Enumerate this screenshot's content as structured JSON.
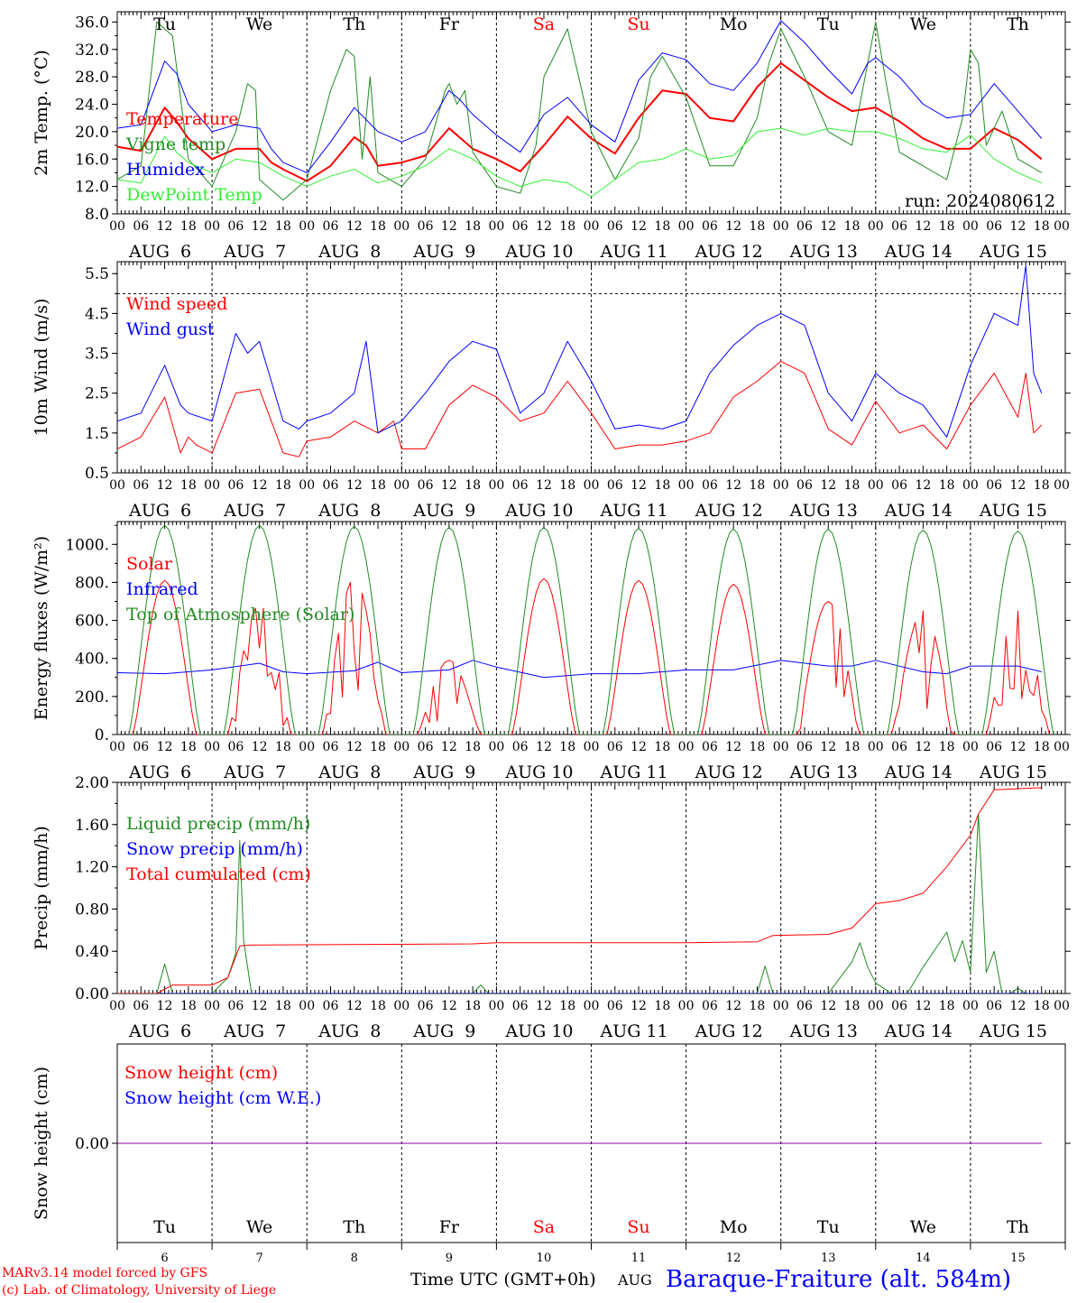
{
  "footer": {
    "credit_line1": "MARv3.14 model forced by GFS",
    "credit_line2": "(c) Lab. of Climatology, University of Liege",
    "xlabel": "Time UTC (GMT+0h)",
    "month": "AUG",
    "station": "Baraque-Fraiture (alt. 584m)"
  },
  "colors": {
    "red": "#ff0000",
    "green": "#228b22",
    "blue": "#0000ff",
    "lightgreen": "#33ee33",
    "purple": "#8800aa"
  },
  "days": [
    {
      "weekday": "Tu",
      "date": "AUG  6",
      "daynum": "6",
      "weekend": false
    },
    {
      "weekday": "We",
      "date": "AUG  7",
      "daynum": "7",
      "weekend": false
    },
    {
      "weekday": "Th",
      "date": "AUG  8",
      "daynum": "8",
      "weekend": false
    },
    {
      "weekday": "Fr",
      "date": "AUG  9",
      "daynum": "9",
      "weekend": false
    },
    {
      "weekday": "Sa",
      "date": "AUG 10",
      "daynum": "10",
      "weekend": true
    },
    {
      "weekday": "Su",
      "date": "AUG 11",
      "daynum": "11",
      "weekend": true
    },
    {
      "weekday": "Mo",
      "date": "AUG 12",
      "daynum": "12",
      "weekend": false
    },
    {
      "weekday": "Tu",
      "date": "AUG 13",
      "daynum": "13",
      "weekend": false
    },
    {
      "weekday": "We",
      "date": "AUG 14",
      "daynum": "14",
      "weekend": false
    },
    {
      "weekday": "Th",
      "date": "AUG 15",
      "daynum": "15",
      "weekend": false
    }
  ],
  "hour_labels": [
    "00",
    "06",
    "12",
    "18"
  ],
  "final_hour_label": "00",
  "chart_data": [
    {
      "type": "line",
      "id": "temp",
      "ylabel": "2m Temp. (°C)",
      "ylim": [
        8,
        37.5
      ],
      "yticks": [
        "8.0",
        "12.0",
        "16.0",
        "20.0",
        "24.0",
        "28.0",
        "32.0",
        "36.0"
      ],
      "annotation": "run: 2024080612",
      "series": [
        {
          "name": "Temperature",
          "color": "red",
          "width": 2,
          "x": [
            0,
            6,
            12,
            15,
            18,
            24,
            30,
            36,
            39,
            42,
            48,
            54,
            60,
            63,
            66,
            72,
            78,
            84,
            87,
            90,
            96,
            102,
            108,
            114,
            120,
            126,
            132,
            138,
            144,
            150,
            156,
            162,
            168,
            174,
            180,
            186,
            192,
            198,
            204,
            210,
            216,
            222,
            228,
            234
          ],
          "y": [
            17.8,
            17.2,
            23.5,
            21.5,
            19.0,
            16.0,
            17.5,
            17.5,
            15.5,
            14.5,
            12.8,
            15.0,
            19.2,
            18.0,
            15.0,
            15.5,
            16.5,
            20.5,
            19.0,
            17.5,
            16.0,
            14.2,
            18.0,
            22.2,
            19.0,
            16.8,
            22.0,
            26.0,
            25.5,
            22.0,
            21.5,
            26.5,
            30.0,
            27.5,
            25.0,
            23.0,
            23.5,
            21.5,
            19.0,
            17.5,
            17.5,
            20.5,
            18.8,
            16.0
          ]
        },
        {
          "name": "Vigne temp",
          "color": "green",
          "width": 1,
          "x": [
            0,
            6,
            10,
            14,
            18,
            24,
            30,
            33,
            35,
            36,
            42,
            48,
            54,
            58,
            60,
            62,
            64,
            66,
            72,
            78,
            83,
            84,
            86,
            88,
            90,
            96,
            102,
            106,
            108,
            114,
            120,
            126,
            132,
            135,
            138,
            144,
            150,
            156,
            162,
            165,
            168,
            174,
            180,
            186,
            190,
            192,
            195,
            198,
            204,
            210,
            214,
            216,
            218,
            220,
            224,
            228,
            234
          ],
          "y": [
            13,
            15,
            36,
            34,
            16,
            12,
            20,
            27,
            26,
            13,
            10,
            13,
            26,
            32,
            31,
            16,
            28,
            14,
            12,
            16,
            26,
            27,
            24,
            26,
            17,
            12,
            11,
            18,
            28,
            35,
            20,
            13,
            19,
            28,
            31,
            25,
            15,
            15,
            22,
            30,
            35,
            28,
            20,
            18,
            30,
            36,
            26,
            17,
            15,
            13,
            22,
            32,
            30,
            18,
            23,
            16,
            14
          ]
        },
        {
          "name": "Humidex",
          "color": "blue",
          "width": 1,
          "x": [
            0,
            6,
            12,
            15,
            18,
            24,
            30,
            36,
            39,
            42,
            48,
            54,
            60,
            66,
            72,
            78,
            84,
            87,
            90,
            96,
            102,
            108,
            114,
            120,
            126,
            132,
            138,
            144,
            150,
            156,
            162,
            168,
            174,
            180,
            186,
            190,
            192,
            198,
            204,
            210,
            216,
            222,
            228,
            234
          ],
          "y": [
            20.5,
            21.0,
            30.3,
            28.5,
            24.0,
            20.0,
            21.0,
            20.5,
            17.5,
            15.5,
            14.0,
            18.5,
            23.5,
            20.0,
            18.5,
            20.0,
            26.0,
            24.5,
            22.5,
            19.5,
            17.0,
            22.5,
            25.0,
            21.0,
            18.5,
            27.5,
            31.5,
            30.5,
            27.0,
            26.0,
            30.0,
            36.2,
            33.0,
            29.0,
            25.5,
            30.0,
            30.8,
            28.0,
            24.0,
            22.0,
            22.5,
            27.0,
            23.0,
            19.0
          ]
        },
        {
          "name": "DewPoint Temp",
          "color": "lightgreen",
          "width": 1,
          "x": [
            0,
            6,
            12,
            15,
            18,
            24,
            30,
            36,
            39,
            42,
            48,
            54,
            60,
            66,
            72,
            78,
            84,
            87,
            90,
            96,
            102,
            108,
            114,
            120,
            126,
            132,
            138,
            144,
            150,
            156,
            162,
            168,
            174,
            180,
            186,
            192,
            198,
            204,
            210,
            216,
            222,
            228,
            234
          ],
          "y": [
            13.0,
            12.5,
            19.3,
            17.0,
            15.5,
            14.0,
            16.0,
            15.5,
            14.5,
            13.5,
            12.0,
            13.5,
            14.5,
            12.5,
            13.5,
            15.0,
            17.5,
            16.8,
            16.0,
            13.5,
            12.0,
            13.0,
            12.5,
            10.5,
            13.0,
            15.5,
            16.0,
            17.5,
            16.0,
            16.5,
            20.0,
            20.5,
            19.5,
            20.5,
            20.0,
            20.0,
            19.0,
            17.5,
            17.0,
            19.5,
            16.0,
            14.0,
            12.5
          ]
        }
      ]
    },
    {
      "type": "line",
      "id": "wind",
      "ylabel": "10m Wind (m/s)",
      "ylim": [
        0.5,
        5.8
      ],
      "yticks": [
        "0.5",
        "1.5",
        "2.5",
        "3.5",
        "4.5",
        "5.5"
      ],
      "reference_line": 5.0,
      "series": [
        {
          "name": "Wind speed",
          "color": "red",
          "width": 1,
          "x": [
            0,
            6,
            12,
            16,
            18,
            20,
            24,
            30,
            36,
            42,
            46,
            48,
            54,
            60,
            66,
            70,
            72,
            78,
            84,
            90,
            96,
            102,
            108,
            114,
            120,
            126,
            132,
            138,
            144,
            150,
            156,
            162,
            168,
            174,
            180,
            186,
            192,
            198,
            204,
            210,
            216,
            222,
            228,
            230,
            232,
            234
          ],
          "y": [
            1.1,
            1.4,
            2.4,
            1.0,
            1.4,
            1.2,
            1.0,
            2.5,
            2.6,
            1.0,
            0.9,
            1.3,
            1.4,
            1.8,
            1.5,
            1.8,
            1.1,
            1.1,
            2.2,
            2.7,
            2.4,
            1.8,
            2.0,
            2.8,
            2.0,
            1.1,
            1.2,
            1.2,
            1.3,
            1.5,
            2.4,
            2.8,
            3.3,
            3.0,
            1.6,
            1.2,
            2.3,
            1.5,
            1.7,
            1.1,
            2.2,
            3.0,
            1.9,
            3.0,
            1.5,
            1.7
          ]
        },
        {
          "name": "Wind gust",
          "color": "blue",
          "width": 1,
          "x": [
            0,
            6,
            12,
            16,
            18,
            24,
            30,
            33,
            36,
            42,
            46,
            48,
            54,
            60,
            63,
            66,
            72,
            78,
            84,
            90,
            96,
            102,
            108,
            114,
            120,
            126,
            132,
            138,
            144,
            150,
            156,
            162,
            168,
            174,
            180,
            186,
            192,
            198,
            204,
            210,
            216,
            222,
            228,
            230,
            232,
            234
          ],
          "y": [
            1.8,
            2.0,
            3.2,
            2.2,
            2.0,
            1.8,
            4.0,
            3.5,
            3.8,
            1.8,
            1.6,
            1.8,
            2.0,
            2.5,
            3.8,
            1.5,
            1.8,
            2.5,
            3.3,
            3.8,
            3.6,
            2.0,
            2.5,
            3.8,
            2.8,
            1.6,
            1.7,
            1.6,
            1.8,
            3.0,
            3.7,
            4.2,
            4.5,
            4.2,
            2.5,
            1.8,
            3.0,
            2.5,
            2.2,
            1.4,
            3.2,
            4.5,
            4.2,
            5.7,
            3.0,
            2.5
          ]
        }
      ]
    },
    {
      "type": "line",
      "id": "energy",
      "ylabel": "Energy fluxes (W/m²)",
      "ylim": [
        0,
        1120
      ],
      "yticks": [
        "0.",
        "200.",
        "400.",
        "600.",
        "800.",
        "1000."
      ],
      "series": [
        {
          "name": "Solar",
          "color": "red",
          "width": 1,
          "peaks": [
            810,
            680,
            820,
            390,
            820,
            810,
            790,
            700,
            650,
            650
          ]
        },
        {
          "name": "Infrared",
          "color": "blue",
          "width": 1,
          "x": [
            0,
            12,
            24,
            36,
            42,
            48,
            60,
            66,
            72,
            84,
            90,
            96,
            108,
            120,
            132,
            144,
            156,
            168,
            180,
            186,
            192,
            204,
            210,
            216,
            228,
            234
          ],
          "y": [
            325,
            320,
            340,
            375,
            330,
            320,
            335,
            380,
            325,
            340,
            390,
            355,
            300,
            320,
            320,
            340,
            340,
            390,
            360,
            360,
            390,
            330,
            320,
            360,
            360,
            330
          ]
        },
        {
          "name": "Top of Atmosphere (Solar)",
          "color": "green",
          "width": 1,
          "peaks": [
            1100,
            1100,
            1095,
            1090,
            1090,
            1085,
            1080,
            1080,
            1075,
            1070
          ]
        }
      ]
    },
    {
      "type": "line",
      "id": "precip",
      "ylabel": "Precip (mm/h)",
      "ylim": [
        0,
        2.0
      ],
      "yticks": [
        "0.00",
        "0.40",
        "0.80",
        "1.20",
        "1.60",
        "2.00"
      ],
      "series": [
        {
          "name": "Liquid precip (mm/h)",
          "color": "green",
          "width": 1,
          "x": [
            0,
            10,
            12,
            14,
            24,
            28,
            30,
            31,
            32,
            34,
            36,
            90,
            92,
            94,
            162,
            164,
            166,
            168,
            180,
            186,
            188,
            190,
            192,
            196,
            200,
            204,
            210,
            212,
            214,
            216,
            218,
            220,
            222,
            224,
            226,
            228,
            230,
            234
          ],
          "y": [
            0,
            0,
            0.28,
            0,
            0,
            0.15,
            0.38,
            1.45,
            0.5,
            0,
            0,
            0,
            0.08,
            0,
            0,
            0.26,
            0,
            0,
            0,
            0.3,
            0.48,
            0.25,
            0.1,
            0,
            0,
            0.25,
            0.58,
            0.3,
            0.5,
            0.2,
            1.7,
            0.2,
            0.4,
            0,
            0,
            0.05,
            0,
            0
          ]
        },
        {
          "name": "Snow precip (mm/h)",
          "color": "blue",
          "width": 1,
          "x": [
            0,
            234
          ],
          "y": [
            0,
            0
          ]
        },
        {
          "name": "Total cumulated (cm)",
          "color": "red",
          "width": 1,
          "x": [
            0,
            10,
            14,
            24,
            28,
            31,
            34,
            36,
            90,
            96,
            144,
            162,
            166,
            180,
            186,
            192,
            198,
            204,
            210,
            216,
            218,
            222,
            234
          ],
          "y": [
            0,
            0,
            0.08,
            0.08,
            0.15,
            0.45,
            0.46,
            0.46,
            0.47,
            0.48,
            0.48,
            0.49,
            0.55,
            0.56,
            0.62,
            0.85,
            0.88,
            0.95,
            1.2,
            1.5,
            1.7,
            1.93,
            1.95
          ]
        }
      ]
    },
    {
      "type": "line",
      "id": "snow",
      "ylabel": "Snow height (cm)",
      "ylim": [
        -1,
        1
      ],
      "yticks": [
        "0.00"
      ],
      "series": [
        {
          "name": "Snow height (cm)",
          "color": "red",
          "width": 1,
          "x": [
            0,
            234
          ],
          "y": [
            0,
            0
          ]
        },
        {
          "name": "Snow height (cm W.E.)",
          "color": "blue",
          "width": 1,
          "x": [
            0,
            234
          ],
          "y": [
            0,
            0
          ]
        }
      ]
    }
  ]
}
